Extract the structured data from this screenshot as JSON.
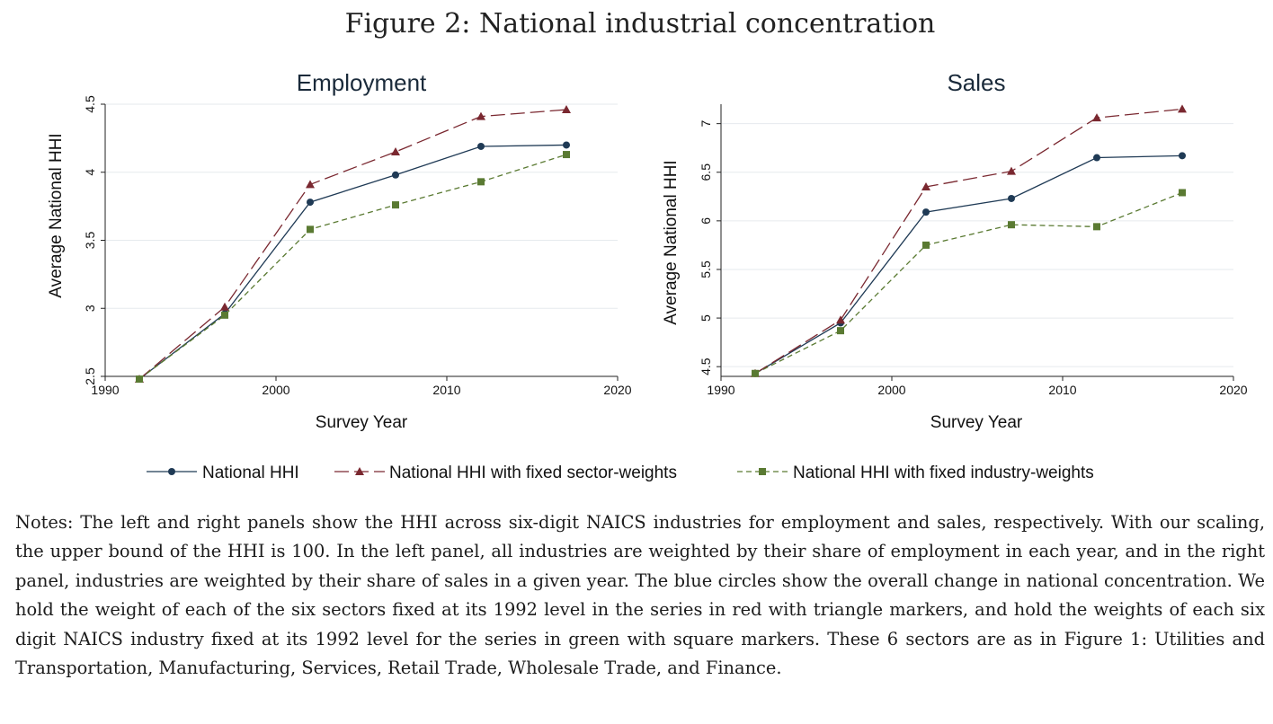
{
  "figure": {
    "title": "Figure 2: National industrial concentration"
  },
  "legend": {
    "items": [
      {
        "label": "National HHI",
        "series": "national",
        "color": "#1f3a55",
        "marker": "circle",
        "dash": "solid"
      },
      {
        "label": "National HHI with fixed sector-weights",
        "series": "sector",
        "color": "#7a2830",
        "marker": "triangle",
        "dash": "longdash"
      },
      {
        "label": "National HHI with fixed industry-weights",
        "series": "industry",
        "color": "#5a7a32",
        "marker": "square",
        "dash": "shortdash"
      }
    ]
  },
  "chart_data": [
    {
      "type": "line",
      "title": "Employment",
      "xlabel": "Survey Year",
      "ylabel": "Average National HHI",
      "xlim": [
        1990,
        2020
      ],
      "ylim": [
        2.5,
        4.5
      ],
      "xticks": [
        1990,
        2000,
        2010,
        2020
      ],
      "yticks": [
        2.5,
        3,
        3.5,
        4,
        4.5
      ],
      "ytick_labels": [
        "2.5",
        "3",
        "3.5",
        "4",
        "4.5"
      ],
      "grid": true,
      "x": [
        1992,
        1997,
        2002,
        2007,
        2012,
        2017
      ],
      "series": [
        {
          "name": "National HHI",
          "key": "national",
          "values": [
            2.48,
            2.96,
            3.78,
            3.98,
            4.19,
            4.2
          ]
        },
        {
          "name": "National HHI with fixed sector-weights",
          "key": "sector",
          "values": [
            2.48,
            3.01,
            3.91,
            4.15,
            4.41,
            4.46
          ]
        },
        {
          "name": "National HHI with fixed industry-weights",
          "key": "industry",
          "values": [
            2.48,
            2.95,
            3.58,
            3.76,
            3.93,
            4.13
          ]
        }
      ]
    },
    {
      "type": "line",
      "title": "Sales",
      "xlabel": "Survey Year",
      "ylabel": "Average National HHI",
      "xlim": [
        1990,
        2020
      ],
      "ylim": [
        4.4,
        7.2
      ],
      "xticks": [
        1990,
        2000,
        2010,
        2020
      ],
      "yticks": [
        4.5,
        5,
        5.5,
        6,
        6.5,
        7
      ],
      "ytick_labels": [
        "4.5",
        "5",
        "5.5",
        "6",
        "6.5",
        "7"
      ],
      "grid": true,
      "x": [
        1992,
        1997,
        2002,
        2007,
        2012,
        2017
      ],
      "series": [
        {
          "name": "National HHI",
          "key": "national",
          "values": [
            4.43,
            4.95,
            6.09,
            6.23,
            6.65,
            6.67
          ]
        },
        {
          "name": "National HHI with fixed sector-weights",
          "key": "sector",
          "values": [
            4.43,
            4.98,
            6.35,
            6.51,
            7.06,
            7.15
          ]
        },
        {
          "name": "National HHI with fixed industry-weights",
          "key": "industry",
          "values": [
            4.43,
            4.87,
            5.75,
            5.96,
            5.94,
            6.29
          ]
        }
      ]
    }
  ],
  "notes": {
    "text_before": "Notes: The left and right panels show the HHI across six-digit NAICS industries for employment and sales, respectively. With our scaling, the upper bound of the HHI is 100. In the left panel, all industries are weighted by their share of employment in each year, and in the right panel, industries are weighted by their share of sales in a given year. The blue circles show the overall change in national concentration. We hold the weight of each of the six sectors fixed at its 1992 level in the series in red with triangle markers, and hold the weights of each six digit NAICS industry fixed at its 1992 level for the series in green with square markers. These 6 sectors are as in Figure ",
    "figure_ref": "1",
    "text_after": ": Utilities and Transportation, Manufacturing, Services, Retail Trade, Wholesale Trade, and Finance."
  }
}
